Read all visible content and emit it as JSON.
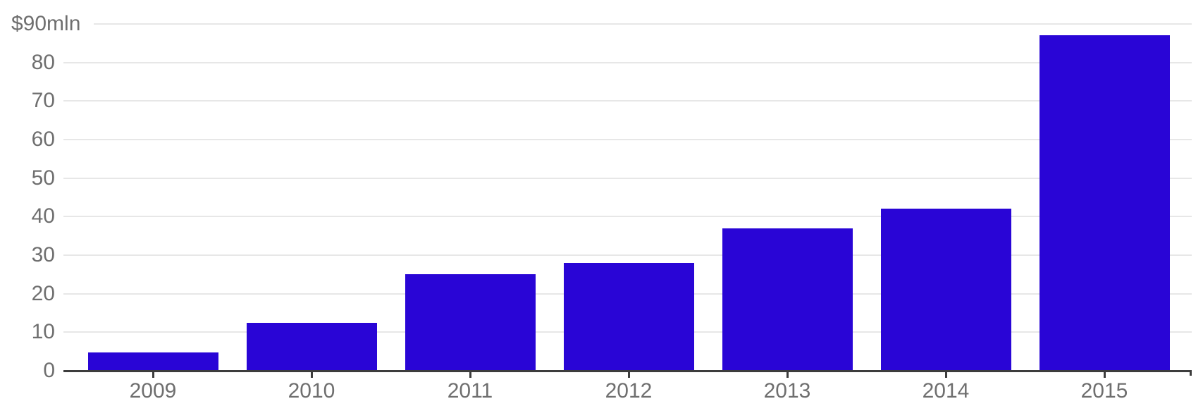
{
  "chart_data": {
    "type": "bar",
    "title": "",
    "xlabel": "",
    "ylabel": "",
    "y_unit": "$mln",
    "categories": [
      "2009",
      "2010",
      "2011",
      "2012",
      "2013",
      "2014",
      "2015"
    ],
    "values": [
      4.8,
      12.4,
      25,
      28,
      37,
      42,
      87
    ],
    "ylim": [
      0,
      90
    ],
    "grid": "horizontal",
    "legend": "none",
    "yticks": [
      {
        "value": 90,
        "label": "$90mln"
      },
      {
        "value": 80,
        "label": "80"
      },
      {
        "value": 70,
        "label": "70"
      },
      {
        "value": 60,
        "label": "60"
      },
      {
        "value": 50,
        "label": "50"
      },
      {
        "value": 40,
        "label": "40"
      },
      {
        "value": 30,
        "label": "30"
      },
      {
        "value": 20,
        "label": "20"
      },
      {
        "value": 10,
        "label": "10"
      },
      {
        "value": 0,
        "label": "0"
      }
    ],
    "colors": {
      "bar": "#2905d6",
      "axis": "#3d3d3d",
      "grid": "#e7e7e7",
      "tick_label": "#6f6f6f"
    }
  }
}
